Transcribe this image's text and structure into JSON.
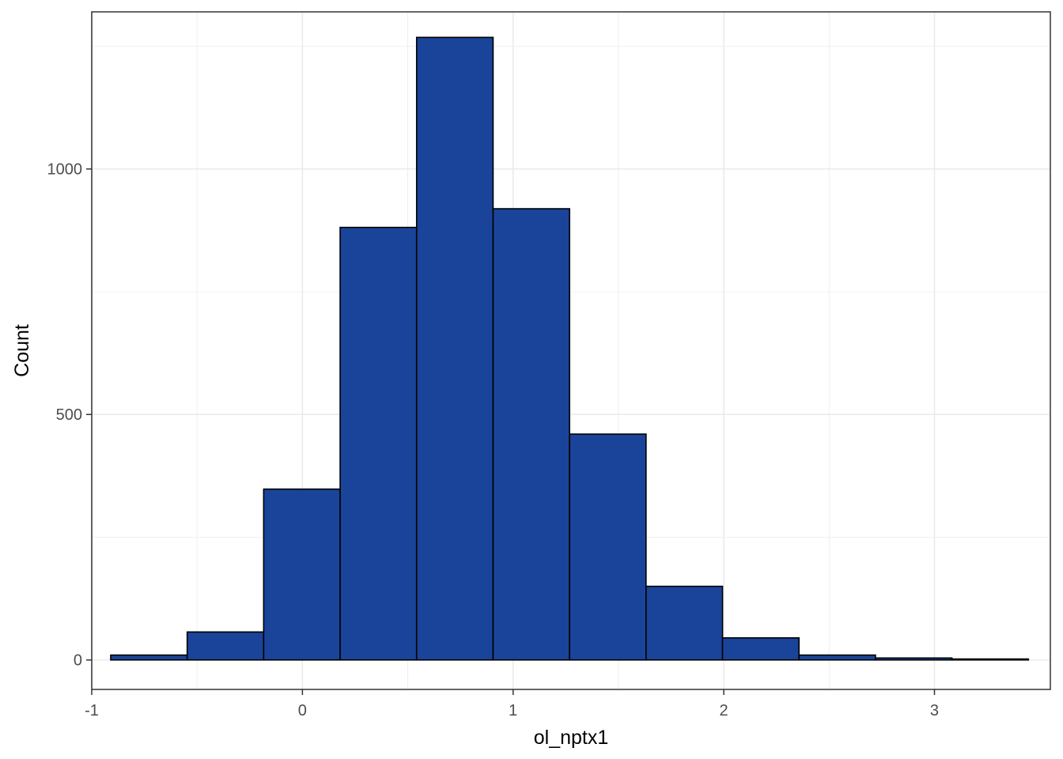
{
  "chart_data": {
    "type": "bar",
    "subtype": "histogram",
    "title": "",
    "xlabel": "ol_nptx1",
    "ylabel": "Count",
    "xlim": [
      -1.0,
      3.55
    ],
    "ylim": [
      -60,
      1320
    ],
    "grid": true,
    "legend": "none",
    "x_ticks": [
      -1,
      0,
      1,
      2,
      3
    ],
    "x_tick_labels": [
      "-1",
      "0",
      "1",
      "2",
      "3"
    ],
    "y_ticks": [
      0,
      500,
      1000
    ],
    "y_tick_labels": [
      "0",
      "500",
      "1000"
    ],
    "x_minor_ticks": [
      -0.5,
      0.5,
      1.5,
      2.5
    ],
    "y_minor_ticks": [
      250,
      750,
      1250
    ],
    "bin_edges": [
      -0.91,
      -0.547,
      -0.184,
      0.179,
      0.542,
      0.905,
      1.268,
      1.631,
      1.994,
      2.357,
      2.72,
      3.083,
      3.446
    ],
    "values": [
      10,
      57,
      348,
      881,
      1268,
      919,
      460,
      150,
      45,
      10,
      4,
      2
    ],
    "colors": {
      "fill": "#1a4499",
      "outline": "#000000",
      "grid": "#ebebeb",
      "panel_border": "#333333"
    }
  }
}
